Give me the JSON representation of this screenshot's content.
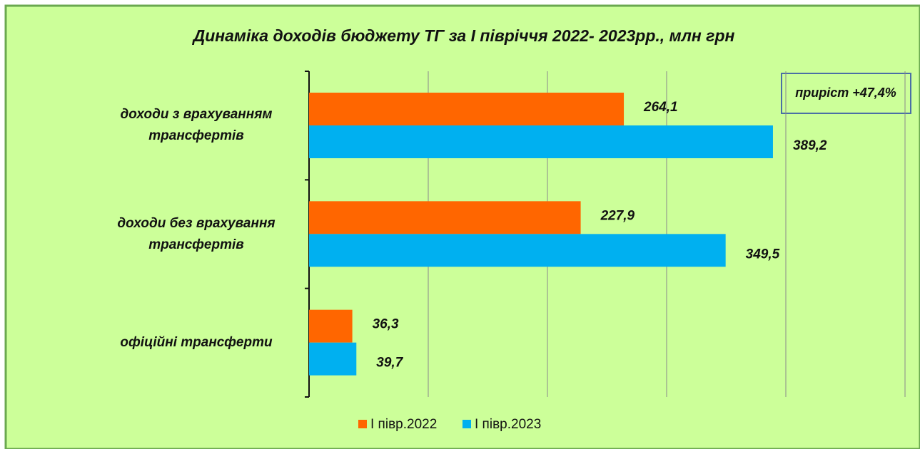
{
  "chart_data": {
    "type": "bar",
    "orientation": "horizontal",
    "title": "Динаміка доходів бюджету ТГ за І півріччя 2022- 2023рр., млн грн",
    "categories": [
      "доходи з врахуванням трансфертів",
      "доходи без врахування трансфертів",
      "офіційні трансферти"
    ],
    "series": [
      {
        "name": "І півр.2022",
        "color": "#ff6600",
        "values": [
          264.1,
          227.9,
          36.3
        ],
        "value_labels": [
          "264,1",
          "227,9",
          "36,3"
        ]
      },
      {
        "name": "І півр.2023",
        "color": "#00b0f0",
        "values": [
          389.2,
          349.5,
          39.7
        ],
        "value_labels": [
          "389,2",
          "349,5",
          "39,7"
        ]
      }
    ],
    "annotation": "приріст +47,4%",
    "xlim": [
      0,
      500
    ],
    "xticks": [
      0,
      100,
      200,
      300,
      400,
      500
    ],
    "grid": true,
    "legend": "bottom"
  }
}
